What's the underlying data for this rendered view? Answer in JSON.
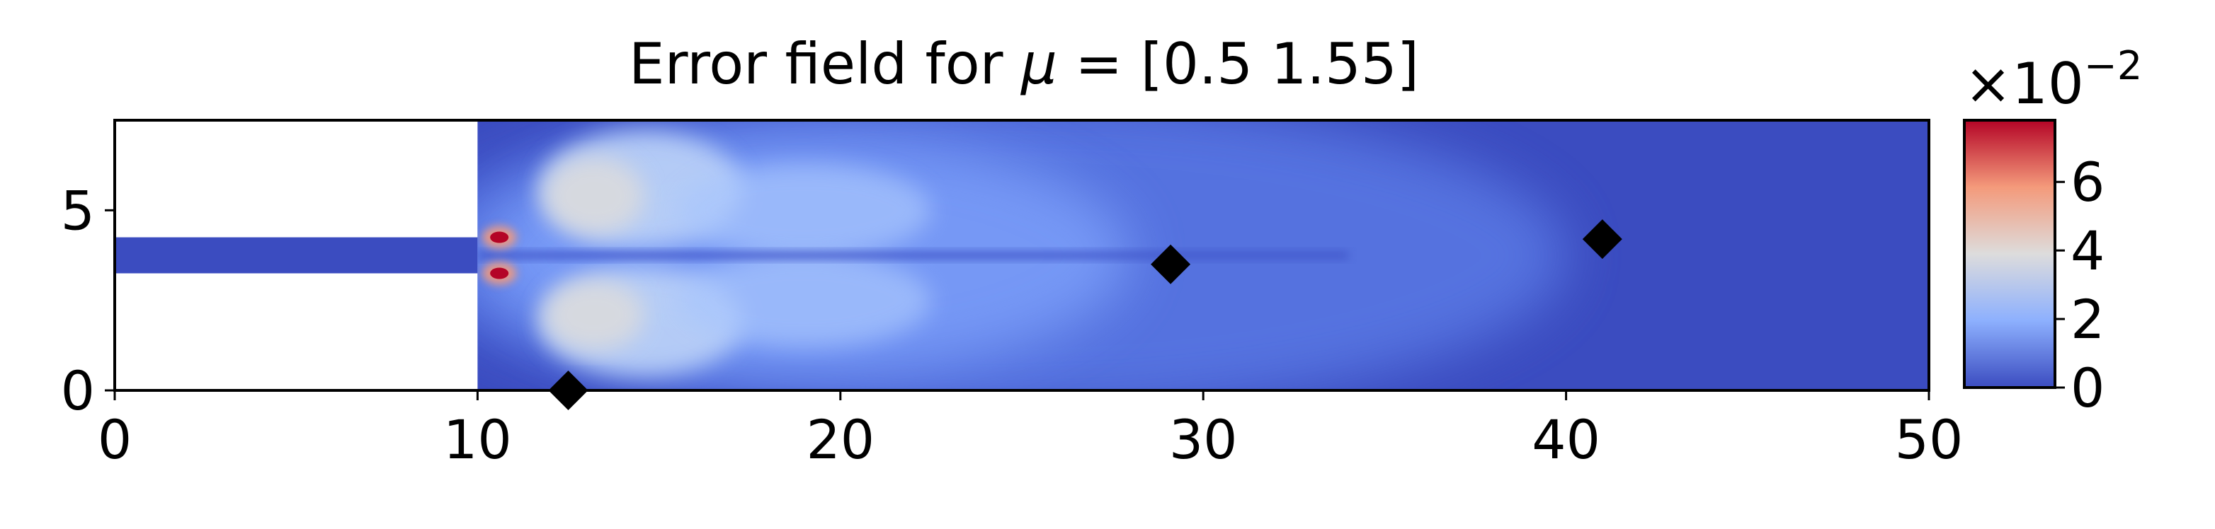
{
  "chart_data": {
    "type": "heatmap",
    "title_prefix": "Error field for ",
    "title_symbol": "μ",
    "title_suffix": " = [0.5  1.55]",
    "xlabel": "",
    "ylabel": "",
    "xlim": [
      0,
      50
    ],
    "ylim": [
      0,
      7.5
    ],
    "x_ticks": [
      0,
      10,
      20,
      30,
      40,
      50
    ],
    "y_ticks": [
      0,
      5
    ],
    "domain": {
      "inlet_x": [
        0,
        10
      ],
      "inlet_y": [
        3.25,
        4.25
      ],
      "chamber_x": [
        10,
        50
      ],
      "chamber_y": [
        0,
        7.5
      ]
    },
    "markers": [
      {
        "x": 12.5,
        "y": 0.0
      },
      {
        "x": 29.1,
        "y": 3.5
      },
      {
        "x": 41.0,
        "y": 4.2
      }
    ],
    "colorbar": {
      "colormap": "coolwarm",
      "range": [
        0,
        7.8
      ],
      "ticks": [
        0,
        2,
        4,
        6
      ],
      "multiplier": "×10",
      "exponent": "−2",
      "colors": [
        "#3b4cc0",
        "#8db0fe",
        "#dddcdc",
        "#f49a7b",
        "#b40426"
      ]
    },
    "field_hotspots": [
      {
        "x": 10.6,
        "y": 4.25,
        "value": 7.8
      },
      {
        "x": 10.6,
        "y": 3.25,
        "value": 7.8
      },
      {
        "x": 13.5,
        "y": 5.5,
        "value": 3.8
      },
      {
        "x": 13.5,
        "y": 2.0,
        "value": 3.8
      },
      {
        "x": 18.0,
        "y": 5.2,
        "value": 2.2
      },
      {
        "x": 18.0,
        "y": 2.4,
        "value": 2.2
      }
    ]
  }
}
